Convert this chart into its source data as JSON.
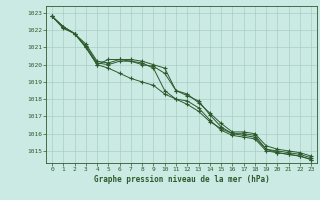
{
  "title": "Graphe pression niveau de la mer (hPa)",
  "background_color": "#cceae4",
  "grid_color_major": "#a0c8c0",
  "grid_color_minor": "#b8dcd6",
  "line_color": "#2d5a2d",
  "marker_color": "#2d5a2d",
  "ylim": [
    1014.3,
    1023.4
  ],
  "xlim": [
    -0.5,
    23.5
  ],
  "yticks": [
    1015,
    1016,
    1017,
    1018,
    1019,
    1020,
    1021,
    1022,
    1023
  ],
  "xticks": [
    0,
    1,
    2,
    3,
    4,
    5,
    6,
    7,
    8,
    9,
    10,
    11,
    12,
    13,
    14,
    15,
    16,
    17,
    18,
    19,
    20,
    21,
    22,
    23
  ],
  "series": [
    [
      1022.8,
      1022.2,
      1021.8,
      1021.0,
      1020.0,
      1020.3,
      1020.3,
      1020.2,
      1020.0,
      1019.9,
      1019.5,
      1018.5,
      1018.2,
      1017.9,
      1017.1,
      1016.4,
      1016.0,
      1016.0,
      1015.9,
      1015.1,
      1015.0,
      1014.9,
      1014.8,
      1014.6
    ],
    [
      1022.8,
      1022.2,
      1021.8,
      1021.0,
      1020.0,
      1019.8,
      1019.5,
      1019.2,
      1019.0,
      1018.8,
      1018.3,
      1018.0,
      1017.7,
      1017.3,
      1016.7,
      1016.3,
      1016.0,
      1015.9,
      1015.8,
      1015.1,
      1014.9,
      1014.8,
      1014.7,
      1014.5
    ],
    [
      1022.8,
      1022.2,
      1021.8,
      1021.2,
      1020.2,
      1020.1,
      1020.3,
      1020.3,
      1020.2,
      1020.0,
      1019.8,
      1018.5,
      1018.3,
      1017.8,
      1017.2,
      1016.6,
      1016.1,
      1016.1,
      1016.0,
      1015.3,
      1015.1,
      1015.0,
      1014.9,
      1014.7
    ],
    [
      1022.8,
      1022.1,
      1021.8,
      1021.1,
      1020.1,
      1020.0,
      1020.2,
      1020.2,
      1020.1,
      1019.8,
      1018.5,
      1018.0,
      1017.9,
      1017.5,
      1016.8,
      1016.2,
      1015.9,
      1015.8,
      1015.7,
      1015.0,
      1014.9,
      1014.8,
      1014.7,
      1014.5
    ]
  ]
}
